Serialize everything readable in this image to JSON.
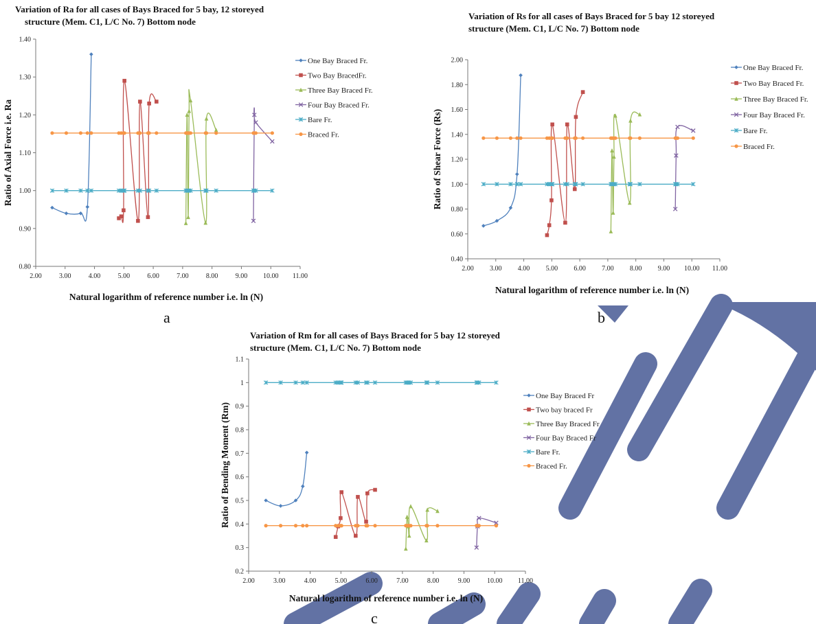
{
  "panel_labels": [
    "a",
    "b",
    "c"
  ],
  "colors": {
    "series": [
      "#4f81bd",
      "#c0504d",
      "#9bbb59",
      "#8064a2",
      "#4bacc6",
      "#f79646"
    ],
    "watermark": "#6272a4"
  },
  "chart_data": [
    {
      "type": "line",
      "title_lines": [
        "Variation of Ra for all cases of Bays Braced for 5 bay, 12 storeyed",
        "structure (Mem. C1, L/C No. 7) Bottom node"
      ],
      "xlabel": "Natural logarithm of reference number  i.e.  ln (N)",
      "ylabel": "Ratio of Axial Force i.e. Ra",
      "xlim": [
        2.0,
        11.0
      ],
      "ylim": [
        0.8,
        1.4
      ],
      "xticks": [
        2,
        3,
        4,
        5,
        6,
        7,
        8,
        9,
        10,
        11
      ],
      "xtick_labels": [
        "2.00",
        "3.00",
        "4.00",
        "5.00",
        "6.00",
        "7.00",
        "8.00",
        "9.00",
        "10.00",
        "11.00"
      ],
      "yticks": [
        0.8,
        0.9,
        1.0,
        1.1,
        1.2,
        1.3,
        1.4
      ],
      "ytick_labels": [
        "0.80",
        "0.90",
        "1.00",
        "1.10",
        "1.20",
        "1.30",
        "1.40"
      ],
      "legend_position": "right",
      "series": [
        {
          "name": "One Bay Braced Fr.",
          "x": [
            2.56,
            3.04,
            3.53,
            3.76,
            3.89
          ],
          "y": [
            0.955,
            0.94,
            0.94,
            0.957,
            1.36
          ]
        },
        {
          "name": "Two Bay BracedFr.",
          "x": [
            4.83,
            4.91,
            4.99,
            5.02,
            5.48,
            5.55,
            5.82,
            5.86,
            6.11
          ],
          "y": [
            0.927,
            0.932,
            0.948,
            1.29,
            0.92,
            1.235,
            0.93,
            1.23,
            1.235
          ]
        },
        {
          "name": "Three Bay Braced Fr.",
          "x": [
            7.11,
            7.15,
            7.19,
            7.22,
            7.27,
            7.78,
            7.81,
            8.14
          ],
          "y": [
            0.914,
            1.2,
            0.93,
            1.21,
            1.238,
            0.915,
            1.19,
            1.16
          ]
        },
        {
          "name": "Four Bay Braced Fr.",
          "x": [
            9.41,
            9.44,
            9.49,
            10.05
          ],
          "y": [
            0.92,
            1.2,
            1.18,
            1.13
          ]
        },
        {
          "name": "Bare Fr.",
          "x": [
            2.56,
            3.04,
            3.53,
            3.76,
            3.89,
            4.83,
            4.91,
            4.99,
            5.02,
            5.48,
            5.55,
            5.82,
            5.86,
            6.11,
            7.11,
            7.15,
            7.19,
            7.22,
            7.27,
            7.78,
            7.81,
            8.14,
            9.41,
            9.44,
            9.49,
            10.05
          ],
          "y": [
            1,
            1,
            1,
            1,
            1,
            1,
            1,
            1,
            1,
            1,
            1,
            1,
            1,
            1,
            1,
            1,
            1,
            1,
            1,
            1,
            1,
            1,
            1,
            1,
            1,
            1
          ]
        },
        {
          "name": "Braced Fr.",
          "x": [
            2.56,
            3.04,
            3.53,
            3.76,
            3.89,
            4.83,
            4.91,
            4.99,
            5.02,
            5.48,
            5.55,
            5.82,
            5.86,
            6.11,
            7.11,
            7.15,
            7.19,
            7.22,
            7.27,
            7.78,
            7.81,
            8.14,
            9.41,
            9.44,
            9.49,
            10.05
          ],
          "y": [
            1.152,
            1.152,
            1.152,
            1.152,
            1.152,
            1.152,
            1.152,
            1.152,
            1.152,
            1.152,
            1.152,
            1.152,
            1.152,
            1.152,
            1.152,
            1.152,
            1.152,
            1.152,
            1.152,
            1.152,
            1.152,
            1.152,
            1.152,
            1.152,
            1.152,
            1.152
          ]
        }
      ]
    },
    {
      "type": "line",
      "title_lines": [
        "Variation of Rs for all cases of Bays Braced for 5 bay 12 storeyed",
        "structure (Mem. C1, L/C No. 7) Bottom node"
      ],
      "xlabel": "Natural logarithm of reference number  i.e.  ln (N)",
      "ylabel": "Ratio of  Shear  Force  (Rs)",
      "xlim": [
        2.0,
        11.0
      ],
      "ylim": [
        0.4,
        2.0
      ],
      "xticks": [
        2,
        3,
        4,
        5,
        6,
        7,
        8,
        9,
        10,
        11
      ],
      "xtick_labels": [
        "2.00",
        "3.00",
        "4.00",
        "5.00",
        "6.00",
        "7.00",
        "8.00",
        "9.00",
        "10.00",
        "11.00"
      ],
      "yticks": [
        0.4,
        0.6,
        0.8,
        1.0,
        1.2,
        1.4,
        1.6,
        1.8,
        2.0
      ],
      "ytick_labels": [
        "0.40",
        "0.60",
        "0.80",
        "1.00",
        "1.20",
        "1.40",
        "1.60",
        "1.80",
        "2.00"
      ],
      "legend_position": "right",
      "series": [
        {
          "name": "One Bay Braced Fr.",
          "x": [
            2.56,
            3.04,
            3.53,
            3.76,
            3.89
          ],
          "y": [
            0.665,
            0.705,
            0.81,
            1.08,
            1.875
          ]
        },
        {
          "name": "Two Bay Braced Fr.",
          "x": [
            4.83,
            4.91,
            4.99,
            5.02,
            5.48,
            5.55,
            5.82,
            5.86,
            6.11
          ],
          "y": [
            0.59,
            0.67,
            0.87,
            1.48,
            0.69,
            1.48,
            0.96,
            1.54,
            1.74
          ]
        },
        {
          "name": "Three Bay Braced Fr.",
          "x": [
            7.11,
            7.15,
            7.19,
            7.22,
            7.27,
            7.78,
            7.81,
            8.14
          ],
          "y": [
            0.62,
            1.27,
            0.77,
            1.22,
            1.55,
            0.85,
            1.51,
            1.56
          ]
        },
        {
          "name": "Four Bay Braced  Fr.",
          "x": [
            9.41,
            9.44,
            9.49,
            10.05
          ],
          "y": [
            0.8,
            1.23,
            1.46,
            1.43
          ]
        },
        {
          "name": "Bare Fr.",
          "x": [
            2.56,
            3.04,
            3.53,
            3.76,
            3.89,
            4.83,
            4.91,
            4.99,
            5.02,
            5.48,
            5.55,
            5.82,
            5.86,
            6.11,
            7.11,
            7.15,
            7.19,
            7.22,
            7.27,
            7.78,
            7.81,
            8.14,
            9.41,
            9.44,
            9.49,
            10.05
          ],
          "y": [
            1,
            1,
            1,
            1,
            1,
            1,
            1,
            1,
            1,
            1,
            1,
            1,
            1,
            1,
            1,
            1,
            1,
            1,
            1,
            1,
            1,
            1,
            1,
            1,
            1,
            1
          ]
        },
        {
          "name": "Braced Fr.",
          "x": [
            2.56,
            3.04,
            3.53,
            3.76,
            3.89,
            4.83,
            4.91,
            4.99,
            5.02,
            5.48,
            5.55,
            5.82,
            5.86,
            6.11,
            7.11,
            7.15,
            7.19,
            7.22,
            7.27,
            7.78,
            7.81,
            8.14,
            9.41,
            9.44,
            9.49,
            10.05
          ],
          "y": [
            1.37,
            1.37,
            1.37,
            1.37,
            1.37,
            1.37,
            1.37,
            1.37,
            1.37,
            1.37,
            1.37,
            1.37,
            1.37,
            1.37,
            1.37,
            1.37,
            1.37,
            1.37,
            1.37,
            1.37,
            1.37,
            1.37,
            1.37,
            1.37,
            1.37,
            1.37
          ]
        }
      ]
    },
    {
      "type": "line",
      "title_lines": [
        "Variation of Rm for all cases of Bays Braced for 5 bay  12 storeyed",
        "structure (Mem. C1, L/C No. 7) Bottom node"
      ],
      "xlabel": "Natural logarithm of reference number  i.e.  ln (N)",
      "ylabel": "Ratio of Bending Moment (Rm)",
      "xlim": [
        2.0,
        11.0
      ],
      "ylim": [
        0.2,
        1.1
      ],
      "xticks": [
        2,
        3,
        4,
        5,
        6,
        7,
        8,
        9,
        10,
        11
      ],
      "xtick_labels": [
        "2.00",
        "3.00",
        "4.00",
        "5.00",
        "6.00",
        "7.00",
        "8.00",
        "9.00",
        "10.00",
        "11.00"
      ],
      "yticks": [
        0.2,
        0.3,
        0.4,
        0.5,
        0.6,
        0.7,
        0.8,
        0.9,
        1.0,
        1.1
      ],
      "ytick_labels": [
        "0.2",
        "0.3",
        "0.4",
        "0.5",
        "0.6",
        "0.7",
        "0.8",
        "0.9",
        "1",
        "1.1"
      ],
      "legend_position": "right",
      "series": [
        {
          "name": "One Bay Braced Fr",
          "x": [
            2.56,
            3.04,
            3.53,
            3.76,
            3.89
          ],
          "y": [
            0.5,
            0.477,
            0.5,
            0.56,
            0.703
          ]
        },
        {
          "name": "Two bay braced Fr",
          "x": [
            4.83,
            4.91,
            4.99,
            5.02,
            5.48,
            5.55,
            5.82,
            5.86,
            6.11
          ],
          "y": [
            0.345,
            0.39,
            0.425,
            0.535,
            0.35,
            0.515,
            0.41,
            0.53,
            0.545
          ]
        },
        {
          "name": "Three Bay Braced Fr",
          "x": [
            7.11,
            7.15,
            7.19,
            7.22,
            7.27,
            7.78,
            7.81,
            8.14
          ],
          "y": [
            0.295,
            0.43,
            0.39,
            0.35,
            0.475,
            0.33,
            0.46,
            0.455
          ]
        },
        {
          "name": "Four Bay Braced Fr",
          "x": [
            9.41,
            9.44,
            9.49,
            10.05
          ],
          "y": [
            0.3,
            0.39,
            0.425,
            0.405
          ]
        },
        {
          "name": "Bare Fr.",
          "x": [
            2.56,
            3.04,
            3.53,
            3.76,
            3.89,
            4.83,
            4.91,
            4.99,
            5.02,
            5.48,
            5.55,
            5.82,
            5.86,
            6.11,
            7.11,
            7.15,
            7.19,
            7.22,
            7.27,
            7.78,
            7.81,
            8.14,
            9.41,
            9.44,
            9.49,
            10.05
          ],
          "y": [
            1,
            1,
            1,
            1,
            1,
            1,
            1,
            1,
            1,
            1,
            1,
            1,
            1,
            1,
            1,
            1,
            1,
            1,
            1,
            1,
            1,
            1,
            1,
            1,
            1,
            1
          ]
        },
        {
          "name": "Braced Fr.",
          "x": [
            2.56,
            3.04,
            3.53,
            3.76,
            3.89,
            4.83,
            4.91,
            4.99,
            5.02,
            5.48,
            5.55,
            5.82,
            5.86,
            6.11,
            7.11,
            7.15,
            7.19,
            7.22,
            7.27,
            7.78,
            7.81,
            8.14,
            9.41,
            9.44,
            9.49,
            10.05
          ],
          "y": [
            0.393,
            0.393,
            0.393,
            0.393,
            0.393,
            0.393,
            0.393,
            0.393,
            0.393,
            0.393,
            0.393,
            0.393,
            0.393,
            0.393,
            0.393,
            0.393,
            0.393,
            0.393,
            0.393,
            0.393,
            0.393,
            0.393,
            0.393,
            0.393,
            0.393,
            0.393
          ]
        }
      ]
    }
  ]
}
